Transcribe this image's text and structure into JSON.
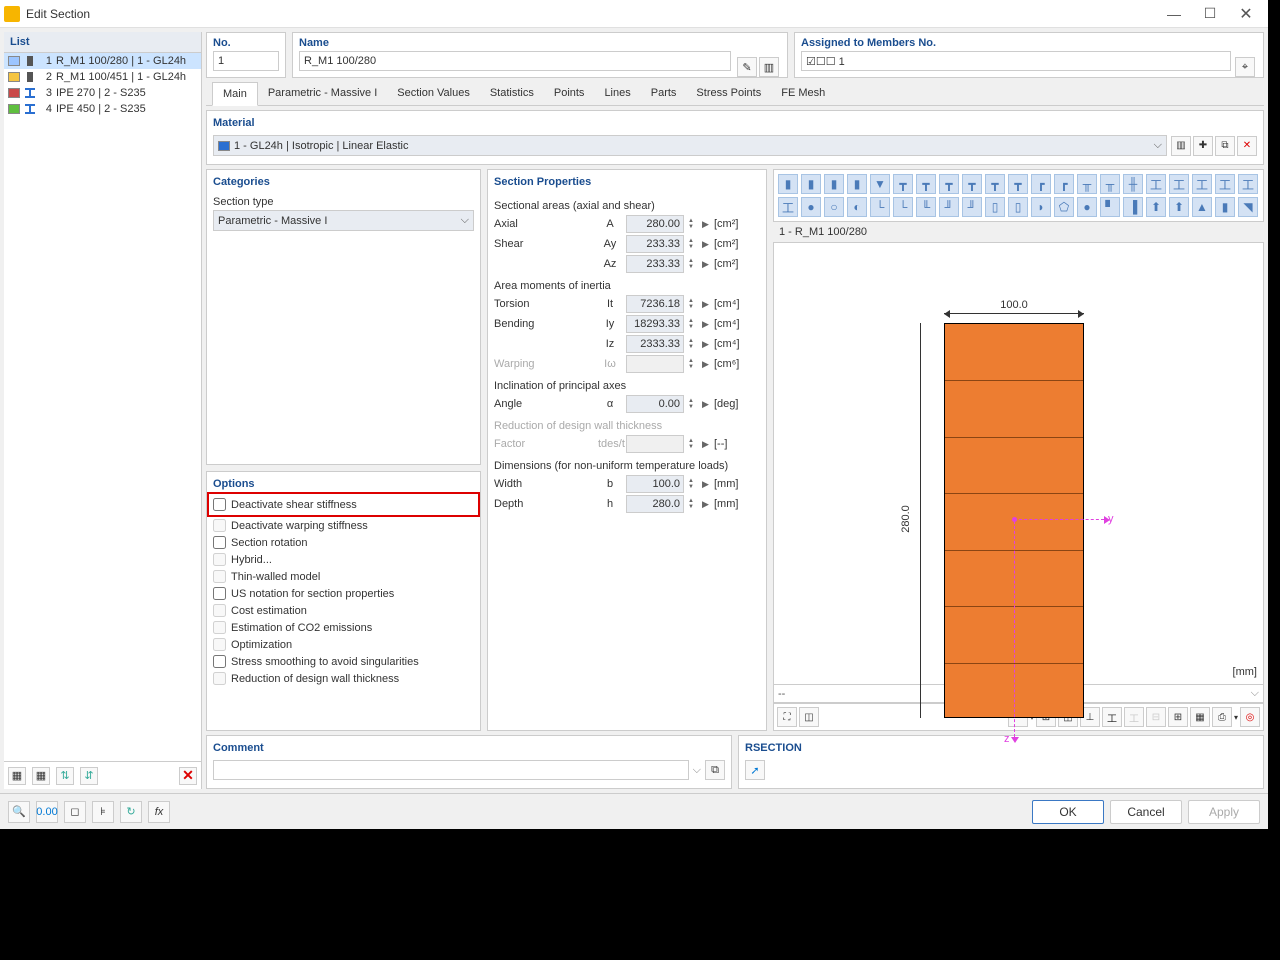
{
  "window": {
    "title": "Edit Section"
  },
  "sidebar": {
    "header": "List",
    "items": [
      {
        "num": "1",
        "label": "R_M1 100/280 | 1 - GL24h",
        "swatch": "#9cc5ff",
        "shape": "rect",
        "shape_color": "#555",
        "selected": true
      },
      {
        "num": "2",
        "label": "R_M1 100/451 | 1 - GL24h",
        "swatch": "#f5c542",
        "shape": "rect",
        "shape_color": "#555",
        "selected": false
      },
      {
        "num": "3",
        "label": "IPE 270 | 2 - S235",
        "swatch": "#c94a4a",
        "shape": "ibeam",
        "shape_color": "#2a6fd1",
        "selected": false
      },
      {
        "num": "4",
        "label": "IPE 450 | 2 - S235",
        "swatch": "#5fbf3f",
        "shape": "ibeam",
        "shape_color": "#2a6fd1",
        "selected": false
      }
    ]
  },
  "fields": {
    "no_label": "No.",
    "no_value": "1",
    "name_label": "Name",
    "name_value": "R_M1 100/280",
    "members_label": "Assigned to Members No.",
    "members_value": "☑☐☐ 1"
  },
  "tabs": [
    "Main",
    "Parametric - Massive I",
    "Section Values",
    "Statistics",
    "Points",
    "Lines",
    "Parts",
    "Stress Points",
    "FE Mesh"
  ],
  "material": {
    "panel_title": "Material",
    "swatch": "#2a6fd1",
    "text": "1 - GL24h | Isotropic | Linear Elastic"
  },
  "categories": {
    "panel_title": "Categories",
    "type_label": "Section type",
    "type_value": "Parametric - Massive I"
  },
  "options": {
    "panel_title": "Options",
    "items": [
      {
        "label": "Deactivate shear stiffness",
        "checked": false,
        "disabled": false,
        "highlight": true
      },
      {
        "label": "Deactivate warping stiffness",
        "checked": false,
        "disabled": true,
        "highlight": false
      },
      {
        "label": "Section rotation",
        "checked": false,
        "disabled": false,
        "highlight": false
      },
      {
        "label": "Hybrid...",
        "checked": false,
        "disabled": true,
        "highlight": false
      },
      {
        "label": "Thin-walled model",
        "checked": false,
        "disabled": true,
        "highlight": false
      },
      {
        "label": "US notation for section properties",
        "checked": false,
        "disabled": false,
        "highlight": false
      },
      {
        "label": "Cost estimation",
        "checked": false,
        "disabled": true,
        "highlight": false
      },
      {
        "label": "Estimation of CO2 emissions",
        "checked": false,
        "disabled": true,
        "highlight": false
      },
      {
        "label": "Optimization",
        "checked": false,
        "disabled": true,
        "highlight": false
      },
      {
        "label": "Stress smoothing to avoid singularities",
        "checked": false,
        "disabled": false,
        "highlight": false
      },
      {
        "label": "Reduction of design wall thickness",
        "checked": false,
        "disabled": true,
        "highlight": false
      }
    ]
  },
  "props": {
    "panel_title": "Section Properties",
    "sections": [
      {
        "title": "Sectional areas (axial and shear)",
        "rows": [
          {
            "label": "Axial",
            "sym": "A",
            "val": "280.00",
            "unit": "[cm²]"
          },
          {
            "label": "Shear",
            "sym": "Ay",
            "val": "233.33",
            "unit": "[cm²]"
          },
          {
            "label": "",
            "sym": "Az",
            "val": "233.33",
            "unit": "[cm²]"
          }
        ]
      },
      {
        "title": "Area moments of inertia",
        "rows": [
          {
            "label": "Torsion",
            "sym": "It",
            "val": "7236.18",
            "unit": "[cm⁴]"
          },
          {
            "label": "Bending",
            "sym": "Iy",
            "val": "18293.33",
            "unit": "[cm⁴]"
          },
          {
            "label": "",
            "sym": "Iz",
            "val": "2333.33",
            "unit": "[cm⁴]"
          },
          {
            "label": "Warping",
            "sym": "Iω",
            "val": "",
            "unit": "[cm⁶]",
            "disabled": true
          }
        ]
      },
      {
        "title": "Inclination of principal axes",
        "rows": [
          {
            "label": "Angle",
            "sym": "α",
            "val": "0.00",
            "unit": "[deg]"
          }
        ]
      },
      {
        "title": "Reduction of design wall thickness",
        "disabled": true,
        "rows": [
          {
            "label": "Factor",
            "sym": "tdes/t",
            "val": "",
            "unit": "[--]",
            "disabled": true
          }
        ]
      },
      {
        "title": "Dimensions (for non-uniform temperature loads)",
        "rows": [
          {
            "label": "Width",
            "sym": "b",
            "val": "100.0",
            "unit": "[mm]"
          },
          {
            "label": "Depth",
            "sym": "h",
            "val": "280.0",
            "unit": "[mm]"
          }
        ]
      }
    ]
  },
  "preview": {
    "label": "1 - R_M1 100/280",
    "width_dim": "100.0",
    "height_dim": "280.0",
    "beam_color": "#ed7d31",
    "segment_count": 7,
    "unit": "[mm]",
    "y_label": "y",
    "z_label": "z"
  },
  "comment": {
    "title": "Comment"
  },
  "rsection": {
    "title": "RSECTION"
  },
  "buttons": {
    "ok": "OK",
    "cancel": "Cancel",
    "apply": "Apply"
  }
}
